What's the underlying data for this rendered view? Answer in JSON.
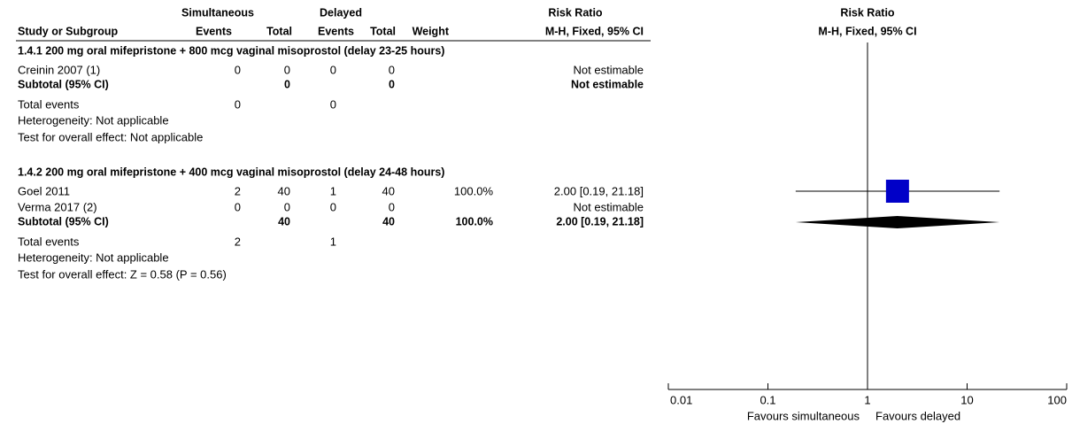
{
  "table": {
    "header_groups": [
      "Simultaneous",
      "Delayed",
      "Risk Ratio"
    ],
    "columns": [
      "Study or Subgroup",
      "Events",
      "Total",
      "Events",
      "Total",
      "Weight",
      "M-H, Fixed, 95% CI"
    ],
    "sections": [
      {
        "title": "1.4.1 200 mg oral mifepristone + 800 mcg vaginal misoprostol (delay 23-25 hours)",
        "rows": [
          [
            "Creinin 2007 (1)",
            "0",
            "0",
            "0",
            "0",
            null,
            "Not estimable"
          ]
        ],
        "subtotal": [
          "Subtotal (95% CI)",
          null,
          "0",
          null,
          "0",
          null,
          "Not estimable"
        ],
        "total_events": [
          "Total events",
          "0",
          null,
          "0",
          null,
          null,
          null
        ],
        "heterogeneity": "Heterogeneity: Not applicable",
        "overall": "Test for overall effect: Not applicable"
      },
      {
        "title": "1.4.2 200 mg oral mifepristone + 400 mcg vaginal misoprostol (delay 24-48 hours)",
        "rows": [
          [
            "Goel 2011",
            "2",
            "40",
            "1",
            "40",
            "100.0%",
            "2.00 [0.19, 21.18]"
          ],
          [
            "Verma 2017 (2)",
            "0",
            "0",
            "0",
            "0",
            null,
            "Not estimable"
          ]
        ],
        "subtotal": [
          "Subtotal (95% CI)",
          null,
          "40",
          null,
          "40",
          "100.0%",
          "2.00 [0.19, 21.18]"
        ],
        "total_events": [
          "Total events",
          "2",
          null,
          "1",
          null,
          null,
          null
        ],
        "heterogeneity": "Heterogeneity: Not applicable",
        "overall": "Test for overall effect: Z = 0.58 (P = 0.56)"
      }
    ]
  },
  "chart_data": {
    "type": "forest",
    "title": "Risk Ratio",
    "subtitle": "M-H, Fixed, 95% CI",
    "log_scale": true,
    "xlim": [
      0.01,
      100
    ],
    "xticks": [
      0.01,
      0.1,
      1,
      10,
      100
    ],
    "label_left": "Favours simultaneous",
    "label_right": "Favours delayed",
    "studies": [
      {
        "estimate": 2.0,
        "lower": 0.19,
        "upper": 21.18,
        "weight": 100,
        "color": "#0000c8"
      }
    ],
    "pooled": [
      {
        "estimate": 2.0,
        "lower": 0.19,
        "upper": 21.18,
        "color": "#000000"
      }
    ]
  }
}
